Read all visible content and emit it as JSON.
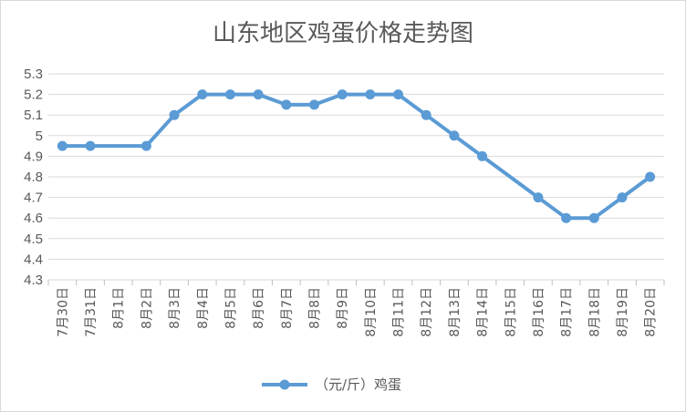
{
  "chart_data": {
    "type": "line",
    "title": "山东地区鸡蛋价格走势图",
    "xlabel": "",
    "ylabel": "",
    "ylim": [
      4.3,
      5.3
    ],
    "yticks": [
      "5.3",
      "5.2",
      "5.1",
      "5",
      "4.9",
      "4.8",
      "4.7",
      "4.6",
      "4.5",
      "4.4",
      "4.3"
    ],
    "grid": true,
    "legend_position": "bottom",
    "categories": [
      "7月30日",
      "7月31日",
      "8月1日",
      "8月2日",
      "8月3日",
      "8月4日",
      "8月5日",
      "8月6日",
      "8月7日",
      "8月8日",
      "8月9日",
      "8月10日",
      "8月11日",
      "8月12日",
      "8月13日",
      "8月14日",
      "8月15日",
      "8月16日",
      "8月17日",
      "8月18日",
      "8月19日",
      "8月20日"
    ],
    "series": [
      {
        "name": "（元/斤）鸡蛋",
        "color": "#5b9bd5",
        "values": [
          4.95,
          4.95,
          null,
          4.95,
          5.1,
          5.2,
          5.2,
          5.2,
          5.15,
          5.15,
          5.2,
          5.2,
          5.2,
          5.1,
          5.0,
          4.9,
          null,
          4.7,
          4.6,
          4.6,
          4.7,
          4.8
        ]
      }
    ]
  }
}
